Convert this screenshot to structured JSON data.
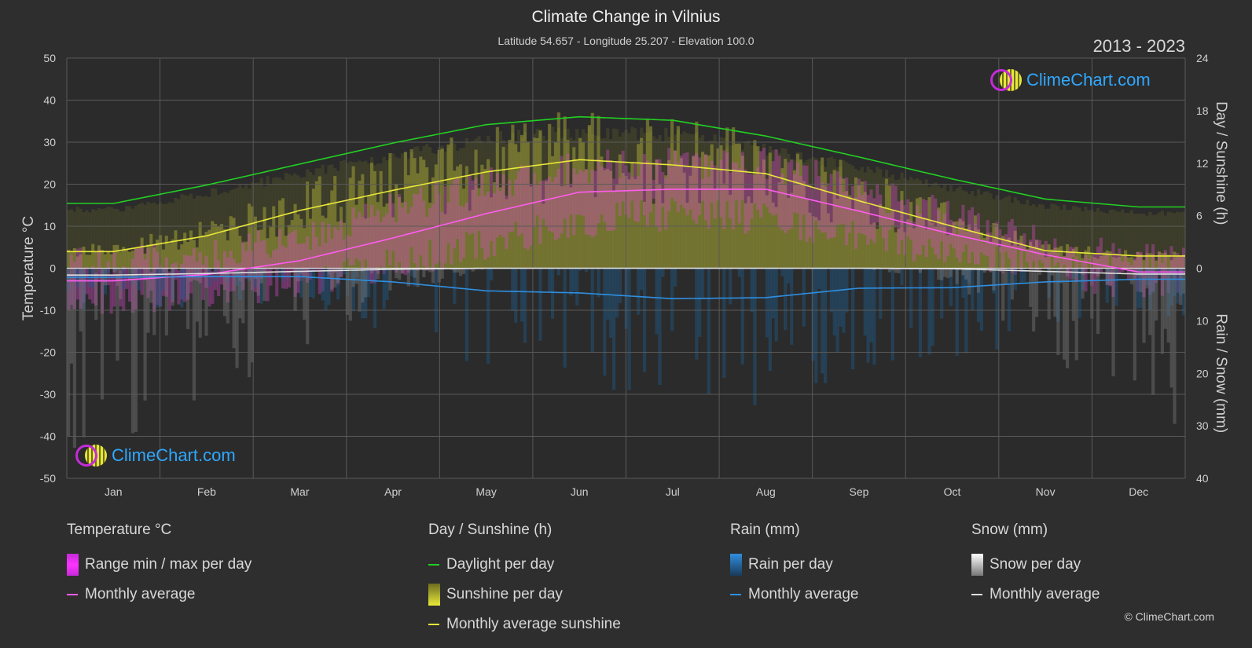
{
  "header": {
    "title": "Climate Change in Vilnius",
    "subtitle": "Latitude 54.657 - Longitude 25.207 - Elevation 100.0",
    "years": "2013 - 2023"
  },
  "logo_text": "ClimeChart.com",
  "copyright": "© ClimeChart.com",
  "chart_data": {
    "type": "area",
    "categories": [
      "Jan",
      "Feb",
      "Mar",
      "Apr",
      "May",
      "Jun",
      "Jul",
      "Aug",
      "Sep",
      "Oct",
      "Nov",
      "Dec"
    ],
    "left_axis": {
      "label": "Temperature °C",
      "min": -50,
      "max": 50,
      "ticks": [
        50,
        40,
        30,
        20,
        10,
        0,
        -10,
        -20,
        -30,
        -40,
        -50
      ]
    },
    "right_axis_top": {
      "label": "Day / Sunshine (h)",
      "min": 0,
      "max": 24,
      "ticks": [
        24,
        18,
        12,
        6,
        0
      ]
    },
    "right_axis_bottom": {
      "label": "Rain / Snow (mm)",
      "min": 0,
      "max": 40,
      "ticks": [
        0,
        10,
        20,
        30,
        40
      ]
    },
    "grid": true,
    "series": [
      {
        "name": "Daylight per day",
        "unit": "h",
        "color": "#22d022",
        "values": [
          7.4,
          9.5,
          11.9,
          14.3,
          16.4,
          17.3,
          16.9,
          15.1,
          12.7,
          10.2,
          7.9,
          7.0
        ]
      },
      {
        "name": "Monthly average sunshine",
        "unit": "h",
        "color": "#e8e83a",
        "values": [
          1.9,
          3.7,
          6.6,
          8.9,
          11.0,
          12.4,
          11.8,
          10.8,
          7.7,
          4.8,
          2.0,
          1.4
        ]
      },
      {
        "name": "Monthly average",
        "group": "Temperature °C",
        "unit": "°C",
        "color": "#ff5cf0",
        "values": [
          -3.0,
          -1.5,
          1.8,
          7.2,
          13.0,
          18.1,
          18.8,
          18.8,
          13.6,
          8.1,
          3.2,
          -0.9
        ]
      },
      {
        "name": "Monthly average",
        "group": "Rain (mm)",
        "unit": "mm",
        "color": "#2f8fe0",
        "values": [
          1.7,
          1.6,
          1.6,
          2.6,
          4.3,
          4.7,
          5.8,
          5.6,
          3.8,
          3.7,
          2.6,
          2.1
        ]
      },
      {
        "name": "Monthly average",
        "group": "Snow (mm)",
        "unit": "mm",
        "color": "#e0e0e0",
        "values": [
          1.3,
          1.0,
          0.6,
          0.2,
          0.0,
          0.0,
          0.0,
          0.0,
          0.0,
          0.1,
          0.6,
          1.1
        ]
      }
    ],
    "temp_range_min_approx": [
      -7,
      -6,
      -3,
      1,
      6,
      11,
      13,
      12,
      8,
      4,
      0,
      -4
    ],
    "temp_range_max_approx": [
      1,
      3,
      7,
      14,
      20,
      24,
      25,
      25,
      19,
      12,
      6,
      2
    ]
  },
  "legend": {
    "temperature": {
      "head": "Temperature °C",
      "range": "Range min / max per day",
      "avg": "Monthly average"
    },
    "sunshine": {
      "head": "Day / Sunshine (h)",
      "daylight": "Daylight per day",
      "sun": "Sunshine per day",
      "avg": "Monthly average sunshine"
    },
    "rain": {
      "head": "Rain (mm)",
      "per_day": "Rain per day",
      "avg": "Monthly average"
    },
    "snow": {
      "head": "Snow (mm)",
      "per_day": "Snow per day",
      "avg": "Monthly average"
    }
  }
}
